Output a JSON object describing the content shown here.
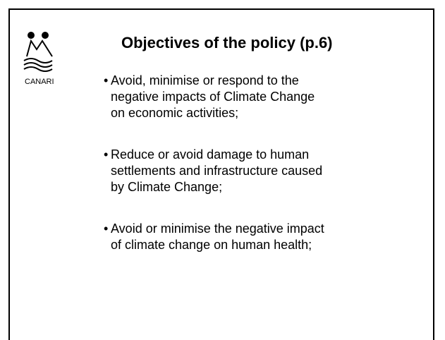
{
  "slide": {
    "logo_text": "CANARI",
    "title": "Objectives of the policy (p.6)",
    "bullets": [
      [
        "Avoid, minimise or respond to the",
        "negative impacts of Climate Change",
        "on economic activities;"
      ],
      [
        "Reduce or avoid damage to human",
        "settlements and infrastructure caused",
        "by Climate Change;"
      ],
      [
        "Avoid or minimise the negative impact",
        "of climate change on human health;"
      ]
    ]
  }
}
